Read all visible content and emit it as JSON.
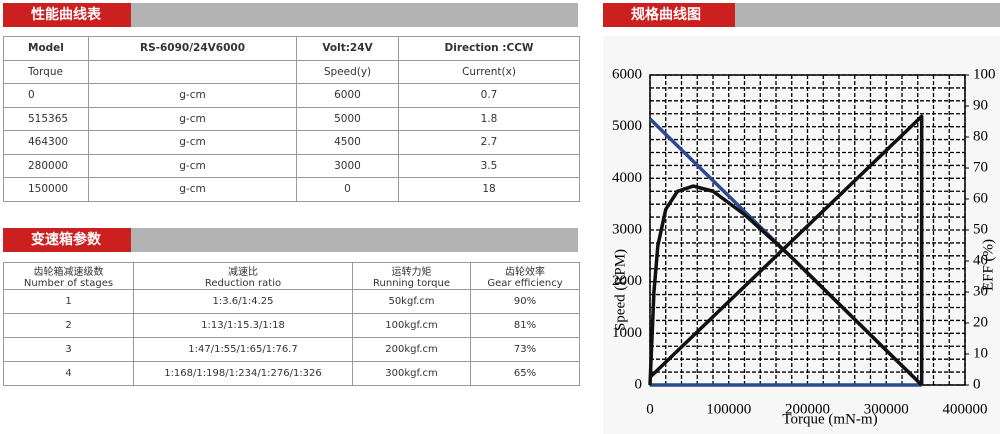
{
  "performance": {
    "title": "性能曲线表",
    "rows": [
      [
        "Model",
        "RS-6090/24V6000",
        "Volt:24V",
        "Direction :CCW"
      ],
      [
        "Torque",
        null,
        "Speed(y)",
        "Current(x)"
      ],
      [
        "0",
        "g-cm",
        "6000",
        "0.7"
      ],
      [
        "515365",
        "g-cm",
        "5000",
        "1.8"
      ],
      [
        "464300",
        "g-cm",
        "4500",
        "2.7"
      ],
      [
        "280000",
        "g-cm",
        "3000",
        "3.5"
      ],
      [
        "150000",
        "g-cm",
        "0",
        "18"
      ]
    ]
  },
  "gearbox": {
    "title": "变速箱参数",
    "header": [
      [
        "齿轮箱减速级数",
        "Number of stages"
      ],
      [
        "减速比",
        "Reduction ratio"
      ],
      [
        "运转力矩",
        "Running torque"
      ],
      [
        "齿轮效率",
        "Gear efficiency"
      ]
    ],
    "rows": [
      [
        "1",
        "1:3.6/1:4.25",
        "50kgf.cm",
        "90%"
      ],
      [
        "2",
        "1:13/1:15.3/1:18",
        "100kgf.cm",
        "81%"
      ],
      [
        "3",
        "1:47/1:55/1:65/1:76.7",
        "200kgf.cm",
        "73%"
      ],
      [
        "4",
        "1:168/1:198/1:234/1:276/1:326",
        "300kgf.cm",
        "65%"
      ]
    ]
  },
  "chart_header": "规格曲线图",
  "chart_data": {
    "type": "line",
    "x_label": "Torque (mN-m)",
    "y_label": "Speed (RPM)",
    "y2_label": "EFF (%)",
    "xlim": [
      0,
      400000
    ],
    "xticks": [
      0,
      100000,
      200000,
      300000,
      400000
    ],
    "ylim": [
      0,
      6000
    ],
    "yticks": [
      0,
      1000,
      2000,
      3000,
      4000,
      5000,
      6000
    ],
    "y2lim": [
      0,
      100
    ],
    "y2ticks": [
      0,
      10,
      20,
      30,
      40,
      50,
      60,
      70,
      80,
      90,
      100
    ],
    "grid": true,
    "minor_grid": true,
    "series": [
      {
        "color": "#2c4a8c",
        "x": [
          0,
          345000
        ],
        "values": [
          5150,
          0
        ]
      },
      {
        "color": "#2c4a8c",
        "x": [
          0,
          345000
        ],
        "values": [
          0,
          0
        ]
      },
      {
        "color": "#111111",
        "x": [
          0,
          345000,
          345000
        ],
        "values": [
          150,
          5200,
          0
        ]
      },
      {
        "color": "#111111",
        "x": [
          0,
          5000,
          10000,
          20000,
          35000,
          55000,
          80000,
          120000,
          180000,
          240000,
          300000,
          345000
        ],
        "values": [
          0,
          1800,
          2700,
          3400,
          3750,
          3850,
          3750,
          3300,
          2470,
          1570,
          670,
          0
        ]
      }
    ]
  }
}
